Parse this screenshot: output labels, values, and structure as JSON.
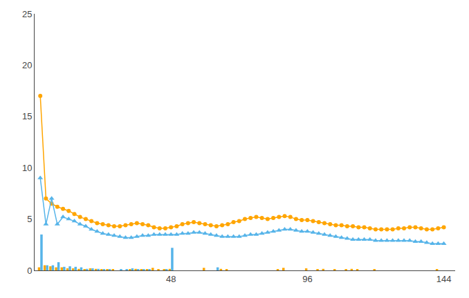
{
  "chart_data": {
    "type": "bar",
    "x": [
      2,
      4,
      6,
      8,
      10,
      12,
      14,
      16,
      18,
      20,
      22,
      24,
      26,
      28,
      30,
      32,
      34,
      36,
      38,
      40,
      42,
      44,
      46,
      48,
      50,
      52,
      54,
      56,
      58,
      60,
      62,
      64,
      66,
      68,
      70,
      72,
      74,
      76,
      78,
      80,
      82,
      84,
      86,
      88,
      90,
      92,
      94,
      96,
      98,
      100,
      102,
      104,
      106,
      108,
      110,
      112,
      114,
      116,
      118,
      120,
      122,
      124,
      126,
      128,
      130,
      132,
      134,
      136,
      138,
      140,
      142,
      144
    ],
    "series": [
      {
        "type": "bar",
        "color": "#FFA500",
        "values": [
          0.3,
          0.5,
          0.4,
          0.3,
          0.3,
          0.2,
          0.2,
          0.15,
          0.1,
          0.2,
          0.15,
          0.1,
          0.1,
          0.1,
          0.0,
          0.0,
          0.1,
          0.15,
          0.1,
          0.1,
          0.25,
          0.1,
          0.1,
          0.15,
          0.0,
          0.0,
          0.0,
          0.0,
          0.0,
          0.25,
          0.0,
          0.0,
          0.15,
          0.1,
          0.0,
          0.0,
          0.0,
          0.0,
          0.0,
          0.0,
          0.0,
          0.0,
          0.1,
          0.25,
          0.0,
          0.0,
          0.0,
          0.2,
          0.0,
          0.1,
          0.15,
          0.0,
          0.1,
          0.0,
          0.1,
          0.15,
          0.1,
          0.0,
          0.0,
          0.1,
          0.0,
          0.0,
          0.0,
          0.0,
          0.0,
          0.0,
          0.0,
          0.0,
          0.0,
          0.0,
          0.1,
          0.0
        ]
      },
      {
        "type": "bar",
        "color": "#56B4E9",
        "values": [
          3.5,
          0.5,
          0.5,
          0.8,
          0.35,
          0.4,
          0.35,
          0.3,
          0.15,
          0.2,
          0.15,
          0.1,
          0.1,
          0.0,
          0.1,
          0.1,
          0.2,
          0.1,
          0.1,
          0.1,
          0.0,
          0.0,
          0.1,
          2.2,
          0.0,
          0.0,
          0.0,
          0.0,
          0.0,
          0.0,
          0.0,
          0.3,
          0.0,
          0.0,
          0.0,
          0.0,
          0.0,
          0.0,
          0.0,
          0.0,
          0.0,
          0.0,
          0.0,
          0.0,
          0.0,
          0.0,
          0.0,
          0.0,
          0.0,
          0.0,
          0.0,
          0.0,
          0.0,
          0.0,
          0.0,
          0.0,
          0.0,
          0.0,
          0.0,
          0.0,
          0.0,
          0.0,
          0.0,
          0.0,
          0.0,
          0.0,
          0.0,
          0.0,
          0.0,
          0.0,
          0.0,
          0.0
        ]
      },
      {
        "type": "line",
        "color": "#FFA500",
        "marker": "circle",
        "values": [
          17.0,
          7.0,
          6.5,
          6.2,
          6.0,
          5.8,
          5.5,
          5.2,
          5.0,
          4.8,
          4.6,
          4.5,
          4.4,
          4.3,
          4.3,
          4.4,
          4.5,
          4.6,
          4.5,
          4.4,
          4.2,
          4.1,
          4.1,
          4.2,
          4.3,
          4.5,
          4.6,
          4.7,
          4.6,
          4.5,
          4.4,
          4.3,
          4.4,
          4.5,
          4.7,
          4.8,
          5.0,
          5.1,
          5.2,
          5.1,
          5.0,
          5.1,
          5.2,
          5.3,
          5.2,
          5.0,
          4.9,
          4.9,
          4.8,
          4.7,
          4.6,
          4.5,
          4.4,
          4.4,
          4.3,
          4.3,
          4.2,
          4.2,
          4.1,
          4.0,
          4.0,
          4.0,
          4.0,
          4.1,
          4.1,
          4.2,
          4.2,
          4.1,
          4.0,
          4.0,
          4.1,
          4.2
        ]
      },
      {
        "type": "line",
        "color": "#56B4E9",
        "marker": "triangle-up",
        "values": [
          9.0,
          4.5,
          7.0,
          4.5,
          5.2,
          5.0,
          4.8,
          4.5,
          4.3,
          4.0,
          3.8,
          3.6,
          3.5,
          3.4,
          3.3,
          3.2,
          3.2,
          3.3,
          3.4,
          3.4,
          3.5,
          3.5,
          3.5,
          3.5,
          3.5,
          3.6,
          3.6,
          3.7,
          3.7,
          3.6,
          3.5,
          3.4,
          3.3,
          3.3,
          3.3,
          3.3,
          3.4,
          3.5,
          3.5,
          3.6,
          3.7,
          3.8,
          3.9,
          4.0,
          4.0,
          3.9,
          3.8,
          3.8,
          3.7,
          3.6,
          3.5,
          3.4,
          3.3,
          3.2,
          3.1,
          3.0,
          3.0,
          3.0,
          3.0,
          2.9,
          2.9,
          2.9,
          2.9,
          2.9,
          2.9,
          2.9,
          2.8,
          2.8,
          2.7,
          2.6,
          2.6,
          2.6
        ]
      }
    ],
    "xlim": [
      0,
      148
    ],
    "xticks": [
      48,
      96,
      144
    ],
    "ylim": [
      0,
      25
    ],
    "yticks": [
      0,
      5,
      10,
      15,
      20,
      25
    ],
    "grid": false
  }
}
